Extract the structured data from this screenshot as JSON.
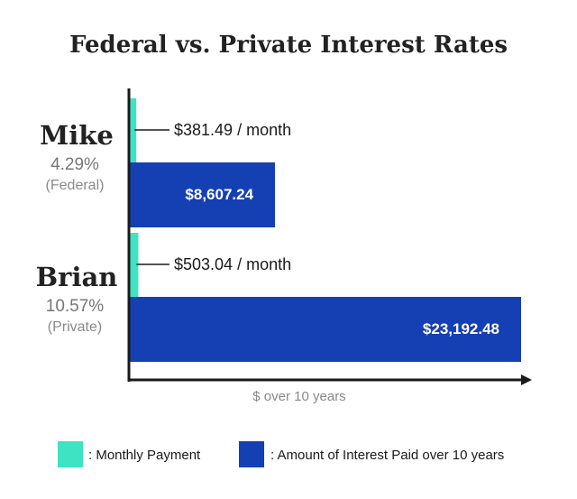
{
  "chart_data": {
    "type": "bar",
    "title": "Federal vs. Private Interest Rates",
    "xlabel": "$ over 10 years",
    "categories": [
      {
        "name": "Mike",
        "rate": "4.29%",
        "type": "(Federal)"
      },
      {
        "name": "Brian",
        "rate": "10.57%",
        "type": "(Private)"
      }
    ],
    "series": [
      {
        "name": "Monthly Payment",
        "color": "#3de3c3",
        "values": [
          381.49,
          503.04
        ],
        "labels": [
          "$381.49 / month",
          "$503.04 / month"
        ]
      },
      {
        "name": "Amount of Interest Paid over 10 years",
        "color": "#1540b4",
        "values": [
          8607.24,
          23192.48
        ],
        "labels": [
          "$8,607.24",
          "$23,192.48"
        ]
      }
    ],
    "xlim": [
      0,
      24000
    ],
    "grid": false,
    "legend_position": "bottom",
    "legend": [
      {
        "color": "#3de3c3",
        "label": ": Monthly Payment"
      },
      {
        "color": "#1540b4",
        "label": ": Amount of Interest Paid over 10 years"
      }
    ]
  }
}
